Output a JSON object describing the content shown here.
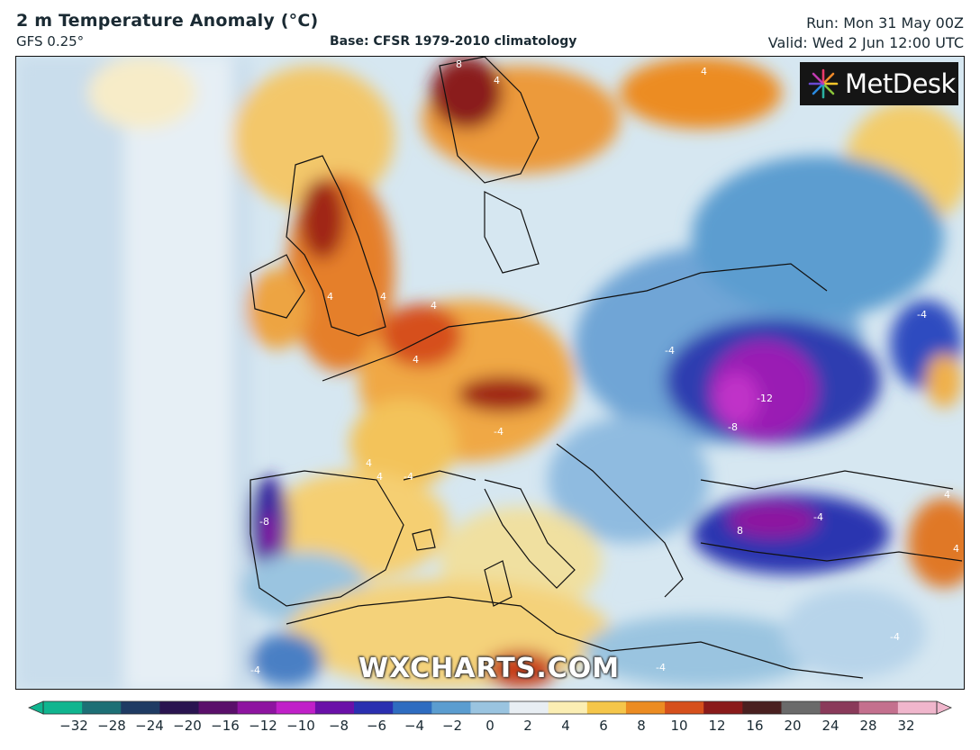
{
  "header": {
    "title": "2 m Temperature Anomaly (°C)",
    "model": "GFS 0.25°",
    "base": "Base: CFSR 1979-2010 climatology",
    "run": "Run: Mon 31 May 00Z",
    "valid": "Valid: Wed 2 Jun 12:00 UTC"
  },
  "branding": {
    "logo_text": "MetDesk",
    "logo_icon": "starburst-icon",
    "watermark": "WXCHARTS.COM"
  },
  "map": {
    "region": "Europe",
    "contour_labels": [
      {
        "text": "8"
      },
      {
        "text": "4"
      },
      {
        "text": "4"
      },
      {
        "text": "4"
      },
      {
        "text": "4"
      },
      {
        "text": "4"
      },
      {
        "text": "4"
      },
      {
        "text": "4"
      },
      {
        "text": "4"
      },
      {
        "text": "-4"
      },
      {
        "text": "-4"
      },
      {
        "text": "-4"
      },
      {
        "text": "-4"
      },
      {
        "text": "-8"
      },
      {
        "text": "-8"
      },
      {
        "text": "-12"
      },
      {
        "text": "8"
      },
      {
        "text": "-4"
      },
      {
        "text": "4"
      },
      {
        "text": "-4"
      },
      {
        "text": "-4"
      },
      {
        "text": "-4"
      },
      {
        "text": "4"
      },
      {
        "text": "4"
      }
    ]
  },
  "colorbar": {
    "ticks": [
      "−32",
      "−28",
      "−24",
      "−20",
      "−16",
      "−12",
      "−10",
      "−8",
      "−6",
      "−4",
      "−2",
      "0",
      "2",
      "4",
      "6",
      "8",
      "10",
      "12",
      "16",
      "20",
      "24",
      "28",
      "32"
    ],
    "colors": [
      "#10b58f",
      "#1d6f75",
      "#1f3b63",
      "#2a1450",
      "#5a0f6a",
      "#8e14a0",
      "#c020c8",
      "#6a10a8",
      "#2a2fb0",
      "#2e6cc0",
      "#5b9dd0",
      "#9ac4e0",
      "#e8eef3",
      "#fbeeb3",
      "#f5c64a",
      "#ec8c22",
      "#d6501c",
      "#8a1a1a",
      "#4a2020",
      "#6a6a6a",
      "#8a3a5a",
      "#c4708e",
      "#f0b6cc"
    ]
  }
}
